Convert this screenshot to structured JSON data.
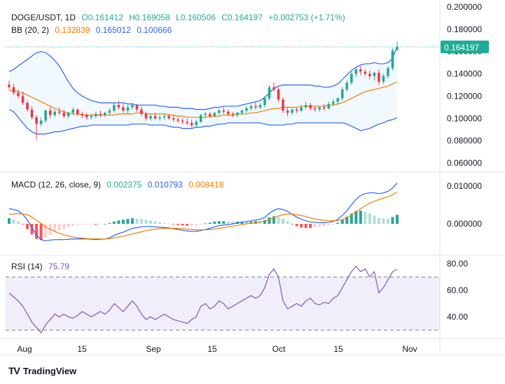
{
  "legend": {
    "symbol": "DOGE/USDT, 1D",
    "open": "O0.161412",
    "high": "H0.169058",
    "low": "L0.160506",
    "close": "C0.164197",
    "change": "+0.002753 (+1.71%)",
    "bb_label": "BB (20, 2)",
    "bb_mid": "0.132839",
    "bb_upper": "0.165012",
    "bb_lower": "0.100666",
    "macd_label": "MACD (12, 26, close, 9)",
    "macd_hist": "0.002375",
    "macd_line": "0.010793",
    "macd_signal": "0.008418",
    "rsi_label": "RSI (14)",
    "rsi_value": "75.79"
  },
  "branding": {
    "name": "TradingView"
  },
  "colors": {
    "up": "#22ab94",
    "down": "#f23645",
    "bb_mid": "#f57c00",
    "bb_band": "#2962ff",
    "macd": "#2962ff",
    "signal": "#f57c00",
    "rsi": "#7e57c2"
  },
  "chart_data": {
    "type": "candlestick",
    "price_axis": {
      "ticks": [
        "0.200000",
        "0.180000",
        "0.160000",
        "0.140000",
        "0.120000",
        "0.100000",
        "0.080000",
        "0.060000"
      ],
      "range": [
        0.05,
        0.2
      ]
    },
    "last_price": "0.164197",
    "macd_axis": {
      "ticks": [
        "0.010000",
        "0.000000"
      ]
    },
    "rsi_axis": {
      "ticks": [
        "80.00",
        "60.00",
        "40.00"
      ],
      "bands": [
        30,
        70
      ]
    },
    "x_labels": [
      "Aug",
      "15",
      "Sep",
      "15",
      "Oct",
      "15",
      "Nov"
    ],
    "candles": [
      {
        "o": 0.1302,
        "h": 0.134,
        "l": 0.126,
        "c": 0.128
      },
      {
        "o": 0.128,
        "h": 0.131,
        "l": 0.121,
        "c": 0.123
      },
      {
        "o": 0.123,
        "h": 0.126,
        "l": 0.118,
        "c": 0.12
      },
      {
        "o": 0.12,
        "h": 0.124,
        "l": 0.112,
        "c": 0.114
      },
      {
        "o": 0.114,
        "h": 0.116,
        "l": 0.106,
        "c": 0.108
      },
      {
        "o": 0.108,
        "h": 0.111,
        "l": 0.099,
        "c": 0.101
      },
      {
        "o": 0.101,
        "h": 0.103,
        "l": 0.081,
        "c": 0.095
      },
      {
        "o": 0.095,
        "h": 0.101,
        "l": 0.093,
        "c": 0.098
      },
      {
        "o": 0.098,
        "h": 0.108,
        "l": 0.096,
        "c": 0.107
      },
      {
        "o": 0.107,
        "h": 0.11,
        "l": 0.1,
        "c": 0.103
      },
      {
        "o": 0.103,
        "h": 0.108,
        "l": 0.101,
        "c": 0.106
      },
      {
        "o": 0.106,
        "h": 0.11,
        "l": 0.103,
        "c": 0.105
      },
      {
        "o": 0.105,
        "h": 0.108,
        "l": 0.1,
        "c": 0.102
      },
      {
        "o": 0.102,
        "h": 0.106,
        "l": 0.1,
        "c": 0.105
      },
      {
        "o": 0.105,
        "h": 0.11,
        "l": 0.103,
        "c": 0.108
      },
      {
        "o": 0.108,
        "h": 0.109,
        "l": 0.102,
        "c": 0.104
      },
      {
        "o": 0.104,
        "h": 0.106,
        "l": 0.1,
        "c": 0.103
      },
      {
        "o": 0.103,
        "h": 0.105,
        "l": 0.099,
        "c": 0.101
      },
      {
        "o": 0.101,
        "h": 0.104,
        "l": 0.099,
        "c": 0.102
      },
      {
        "o": 0.102,
        "h": 0.106,
        "l": 0.1,
        "c": 0.104
      },
      {
        "o": 0.104,
        "h": 0.107,
        "l": 0.101,
        "c": 0.103
      },
      {
        "o": 0.103,
        "h": 0.106,
        "l": 0.101,
        "c": 0.105
      },
      {
        "o": 0.105,
        "h": 0.109,
        "l": 0.103,
        "c": 0.107
      },
      {
        "o": 0.107,
        "h": 0.114,
        "l": 0.105,
        "c": 0.112
      },
      {
        "o": 0.112,
        "h": 0.116,
        "l": 0.108,
        "c": 0.11
      },
      {
        "o": 0.11,
        "h": 0.113,
        "l": 0.105,
        "c": 0.107
      },
      {
        "o": 0.107,
        "h": 0.112,
        "l": 0.104,
        "c": 0.11
      },
      {
        "o": 0.11,
        "h": 0.114,
        "l": 0.108,
        "c": 0.112
      },
      {
        "o": 0.112,
        "h": 0.113,
        "l": 0.106,
        "c": 0.108
      },
      {
        "o": 0.108,
        "h": 0.111,
        "l": 0.102,
        "c": 0.104
      },
      {
        "o": 0.104,
        "h": 0.106,
        "l": 0.098,
        "c": 0.1
      },
      {
        "o": 0.1,
        "h": 0.104,
        "l": 0.098,
        "c": 0.102
      },
      {
        "o": 0.102,
        "h": 0.105,
        "l": 0.099,
        "c": 0.1
      },
      {
        "o": 0.1,
        "h": 0.103,
        "l": 0.098,
        "c": 0.101
      },
      {
        "o": 0.101,
        "h": 0.104,
        "l": 0.099,
        "c": 0.102
      },
      {
        "o": 0.102,
        "h": 0.104,
        "l": 0.099,
        "c": 0.1
      },
      {
        "o": 0.1,
        "h": 0.103,
        "l": 0.097,
        "c": 0.099
      },
      {
        "o": 0.099,
        "h": 0.101,
        "l": 0.096,
        "c": 0.098
      },
      {
        "o": 0.098,
        "h": 0.1,
        "l": 0.095,
        "c": 0.097
      },
      {
        "o": 0.097,
        "h": 0.1,
        "l": 0.094,
        "c": 0.096
      },
      {
        "o": 0.096,
        "h": 0.099,
        "l": 0.092,
        "c": 0.094
      },
      {
        "o": 0.094,
        "h": 0.099,
        "l": 0.092,
        "c": 0.097
      },
      {
        "o": 0.097,
        "h": 0.104,
        "l": 0.096,
        "c": 0.103
      },
      {
        "o": 0.103,
        "h": 0.106,
        "l": 0.1,
        "c": 0.104
      },
      {
        "o": 0.104,
        "h": 0.106,
        "l": 0.1,
        "c": 0.102
      },
      {
        "o": 0.102,
        "h": 0.106,
        "l": 0.101,
        "c": 0.105
      },
      {
        "o": 0.105,
        "h": 0.109,
        "l": 0.103,
        "c": 0.107
      },
      {
        "o": 0.107,
        "h": 0.11,
        "l": 0.104,
        "c": 0.106
      },
      {
        "o": 0.106,
        "h": 0.108,
        "l": 0.102,
        "c": 0.104
      },
      {
        "o": 0.104,
        "h": 0.106,
        "l": 0.101,
        "c": 0.103
      },
      {
        "o": 0.103,
        "h": 0.106,
        "l": 0.101,
        "c": 0.105
      },
      {
        "o": 0.105,
        "h": 0.108,
        "l": 0.103,
        "c": 0.107
      },
      {
        "o": 0.107,
        "h": 0.111,
        "l": 0.105,
        "c": 0.109
      },
      {
        "o": 0.109,
        "h": 0.113,
        "l": 0.107,
        "c": 0.111
      },
      {
        "o": 0.111,
        "h": 0.115,
        "l": 0.108,
        "c": 0.11
      },
      {
        "o": 0.11,
        "h": 0.114,
        "l": 0.108,
        "c": 0.112
      },
      {
        "o": 0.112,
        "h": 0.12,
        "l": 0.11,
        "c": 0.118
      },
      {
        "o": 0.118,
        "h": 0.13,
        "l": 0.116,
        "c": 0.128
      },
      {
        "o": 0.128,
        "h": 0.132,
        "l": 0.124,
        "c": 0.126
      },
      {
        "o": 0.126,
        "h": 0.128,
        "l": 0.115,
        "c": 0.117
      },
      {
        "o": 0.117,
        "h": 0.119,
        "l": 0.105,
        "c": 0.107
      },
      {
        "o": 0.107,
        "h": 0.11,
        "l": 0.102,
        "c": 0.105
      },
      {
        "o": 0.105,
        "h": 0.109,
        "l": 0.103,
        "c": 0.108
      },
      {
        "o": 0.108,
        "h": 0.11,
        "l": 0.105,
        "c": 0.107
      },
      {
        "o": 0.107,
        "h": 0.112,
        "l": 0.106,
        "c": 0.11
      },
      {
        "o": 0.11,
        "h": 0.115,
        "l": 0.108,
        "c": 0.112
      },
      {
        "o": 0.112,
        "h": 0.114,
        "l": 0.107,
        "c": 0.109
      },
      {
        "o": 0.109,
        "h": 0.111,
        "l": 0.106,
        "c": 0.108
      },
      {
        "o": 0.108,
        "h": 0.111,
        "l": 0.106,
        "c": 0.11
      },
      {
        "o": 0.11,
        "h": 0.113,
        "l": 0.107,
        "c": 0.109
      },
      {
        "o": 0.109,
        "h": 0.115,
        "l": 0.108,
        "c": 0.113
      },
      {
        "o": 0.113,
        "h": 0.117,
        "l": 0.111,
        "c": 0.115
      },
      {
        "o": 0.115,
        "h": 0.119,
        "l": 0.112,
        "c": 0.118
      },
      {
        "o": 0.118,
        "h": 0.128,
        "l": 0.116,
        "c": 0.126
      },
      {
        "o": 0.126,
        "h": 0.134,
        "l": 0.124,
        "c": 0.132
      },
      {
        "o": 0.132,
        "h": 0.142,
        "l": 0.13,
        "c": 0.14
      },
      {
        "o": 0.14,
        "h": 0.146,
        "l": 0.137,
        "c": 0.144
      },
      {
        "o": 0.144,
        "h": 0.147,
        "l": 0.139,
        "c": 0.142
      },
      {
        "o": 0.142,
        "h": 0.144,
        "l": 0.138,
        "c": 0.14
      },
      {
        "o": 0.14,
        "h": 0.143,
        "l": 0.135,
        "c": 0.138
      },
      {
        "o": 0.138,
        "h": 0.142,
        "l": 0.134,
        "c": 0.141
      },
      {
        "o": 0.141,
        "h": 0.144,
        "l": 0.13,
        "c": 0.133
      },
      {
        "o": 0.133,
        "h": 0.14,
        "l": 0.131,
        "c": 0.138
      },
      {
        "o": 0.138,
        "h": 0.147,
        "l": 0.136,
        "c": 0.145
      },
      {
        "o": 0.145,
        "h": 0.163,
        "l": 0.143,
        "c": 0.161
      },
      {
        "o": 0.1614,
        "h": 0.1691,
        "l": 0.1605,
        "c": 0.1642
      }
    ],
    "bb_upper": [
      0.142,
      0.144,
      0.147,
      0.15,
      0.153,
      0.156,
      0.159,
      0.16,
      0.159,
      0.156,
      0.152,
      0.147,
      0.14,
      0.133,
      0.127,
      0.123,
      0.12,
      0.118,
      0.116,
      0.115,
      0.114,
      0.114,
      0.114,
      0.114,
      0.114,
      0.114,
      0.113,
      0.113,
      0.112,
      0.112,
      0.112,
      0.112,
      0.112,
      0.111,
      0.111,
      0.11,
      0.11,
      0.11,
      0.109,
      0.109,
      0.109,
      0.108,
      0.108,
      0.108,
      0.109,
      0.11,
      0.11,
      0.111,
      0.111,
      0.111,
      0.111,
      0.112,
      0.113,
      0.114,
      0.115,
      0.116,
      0.119,
      0.123,
      0.127,
      0.129,
      0.13,
      0.13,
      0.13,
      0.13,
      0.13,
      0.13,
      0.13,
      0.129,
      0.129,
      0.128,
      0.128,
      0.129,
      0.131,
      0.135,
      0.139,
      0.143,
      0.146,
      0.148,
      0.149,
      0.149,
      0.15,
      0.149,
      0.149,
      0.15,
      0.154,
      0.165
    ],
    "bb_mid": [
      0.125,
      0.125,
      0.124,
      0.123,
      0.121,
      0.119,
      0.117,
      0.115,
      0.113,
      0.111,
      0.109,
      0.107,
      0.106,
      0.105,
      0.104,
      0.104,
      0.103,
      0.103,
      0.103,
      0.103,
      0.103,
      0.103,
      0.103,
      0.103,
      0.104,
      0.104,
      0.104,
      0.104,
      0.105,
      0.105,
      0.104,
      0.104,
      0.104,
      0.104,
      0.104,
      0.103,
      0.103,
      0.102,
      0.102,
      0.101,
      0.101,
      0.101,
      0.101,
      0.101,
      0.102,
      0.102,
      0.102,
      0.103,
      0.103,
      0.103,
      0.104,
      0.104,
      0.104,
      0.105,
      0.105,
      0.106,
      0.107,
      0.108,
      0.109,
      0.109,
      0.11,
      0.11,
      0.11,
      0.11,
      0.111,
      0.111,
      0.111,
      0.111,
      0.111,
      0.111,
      0.112,
      0.112,
      0.113,
      0.114,
      0.116,
      0.118,
      0.12,
      0.122,
      0.124,
      0.125,
      0.126,
      0.127,
      0.128,
      0.129,
      0.131,
      0.1328
    ],
    "bb_lower": [
      0.108,
      0.106,
      0.101,
      0.096,
      0.091,
      0.088,
      0.086,
      0.086,
      0.086,
      0.087,
      0.088,
      0.088,
      0.089,
      0.09,
      0.091,
      0.092,
      0.093,
      0.093,
      0.094,
      0.094,
      0.094,
      0.094,
      0.094,
      0.094,
      0.094,
      0.094,
      0.094,
      0.095,
      0.095,
      0.095,
      0.095,
      0.094,
      0.094,
      0.094,
      0.094,
      0.093,
      0.092,
      0.092,
      0.091,
      0.091,
      0.091,
      0.092,
      0.092,
      0.093,
      0.093,
      0.094,
      0.095,
      0.095,
      0.096,
      0.096,
      0.096,
      0.096,
      0.096,
      0.096,
      0.096,
      0.096,
      0.095,
      0.094,
      0.094,
      0.094,
      0.094,
      0.095,
      0.095,
      0.096,
      0.096,
      0.096,
      0.096,
      0.096,
      0.096,
      0.096,
      0.096,
      0.096,
      0.096,
      0.096,
      0.095,
      0.093,
      0.091,
      0.089,
      0.09,
      0.091,
      0.093,
      0.095,
      0.096,
      0.098,
      0.099,
      0.1007
    ],
    "macd": [
      0.004,
      0.0038,
      0.0034,
      0.0025,
      0.001,
      -0.001,
      -0.003,
      -0.0042,
      -0.0045,
      -0.0043,
      -0.0042,
      -0.0042,
      -0.0042,
      -0.0041,
      -0.004,
      -0.004,
      -0.004,
      -0.004,
      -0.0041,
      -0.0042,
      -0.0041,
      -0.004,
      -0.0037,
      -0.0031,
      -0.0026,
      -0.0022,
      -0.0017,
      -0.0012,
      -0.001,
      -0.0008,
      -0.0007,
      -0.0007,
      -0.0008,
      -0.0009,
      -0.001,
      -0.0011,
      -0.0013,
      -0.0015,
      -0.0017,
      -0.0019,
      -0.002,
      -0.002,
      -0.0018,
      -0.0015,
      -0.0012,
      -0.0008,
      -0.0005,
      -0.0003,
      -0.0002,
      0.0,
      0.0002,
      0.0004,
      0.0006,
      0.0008,
      0.001,
      0.0012,
      0.0017,
      0.0028,
      0.0036,
      0.004,
      0.0038,
      0.0033,
      0.0025,
      0.0018,
      0.0012,
      0.0008,
      0.0005,
      0.0004,
      0.0003,
      0.0003,
      0.0004,
      0.0006,
      0.0012,
      0.0022,
      0.0035,
      0.005,
      0.0065,
      0.0075,
      0.008,
      0.0082,
      0.0082,
      0.008,
      0.0082,
      0.0086,
      0.0095,
      0.0108
    ],
    "signal": [
      0.0025,
      0.0026,
      0.0027,
      0.0026,
      0.0024,
      0.0018,
      0.001,
      0.0001,
      -0.0008,
      -0.0014,
      -0.002,
      -0.0025,
      -0.0029,
      -0.0032,
      -0.0035,
      -0.0037,
      -0.0038,
      -0.0039,
      -0.004,
      -0.004,
      -0.004,
      -0.004,
      -0.0039,
      -0.0037,
      -0.0035,
      -0.0033,
      -0.003,
      -0.0027,
      -0.0024,
      -0.0021,
      -0.0018,
      -0.0016,
      -0.0014,
      -0.0013,
      -0.0012,
      -0.0012,
      -0.0012,
      -0.0012,
      -0.0013,
      -0.0014,
      -0.0015,
      -0.0016,
      -0.0016,
      -0.0016,
      -0.0015,
      -0.0014,
      -0.0012,
      -0.001,
      -0.0008,
      -0.0006,
      -0.0004,
      -0.0002,
      0.0,
      0.0002,
      0.0003,
      0.0005,
      0.0007,
      0.0011,
      0.0016,
      0.0021,
      0.0024,
      0.0026,
      0.0026,
      0.0024,
      0.0022,
      0.0019,
      0.0016,
      0.0013,
      0.0011,
      0.0009,
      0.0008,
      0.0008,
      0.0009,
      0.0011,
      0.0016,
      0.0023,
      0.0031,
      0.004,
      0.0048,
      0.0055,
      0.006,
      0.0064,
      0.0068,
      0.0072,
      0.0077,
      0.0084
    ],
    "rsi": [
      58,
      55,
      52,
      48,
      42,
      36,
      32,
      28,
      34,
      38,
      42,
      40,
      42,
      40,
      39,
      41,
      44,
      42,
      40,
      42,
      44,
      42,
      45,
      50,
      47,
      44,
      48,
      52,
      48,
      42,
      38,
      40,
      38,
      40,
      42,
      40,
      38,
      37,
      36,
      35,
      38,
      40,
      48,
      50,
      46,
      48,
      52,
      50,
      46,
      48,
      50,
      52,
      54,
      56,
      54,
      56,
      62,
      72,
      76,
      70,
      52,
      46,
      48,
      50,
      48,
      52,
      54,
      50,
      49,
      51,
      50,
      54,
      56,
      62,
      68,
      74,
      78,
      74,
      76,
      70,
      74,
      58,
      62,
      68,
      74,
      75.79
    ]
  }
}
